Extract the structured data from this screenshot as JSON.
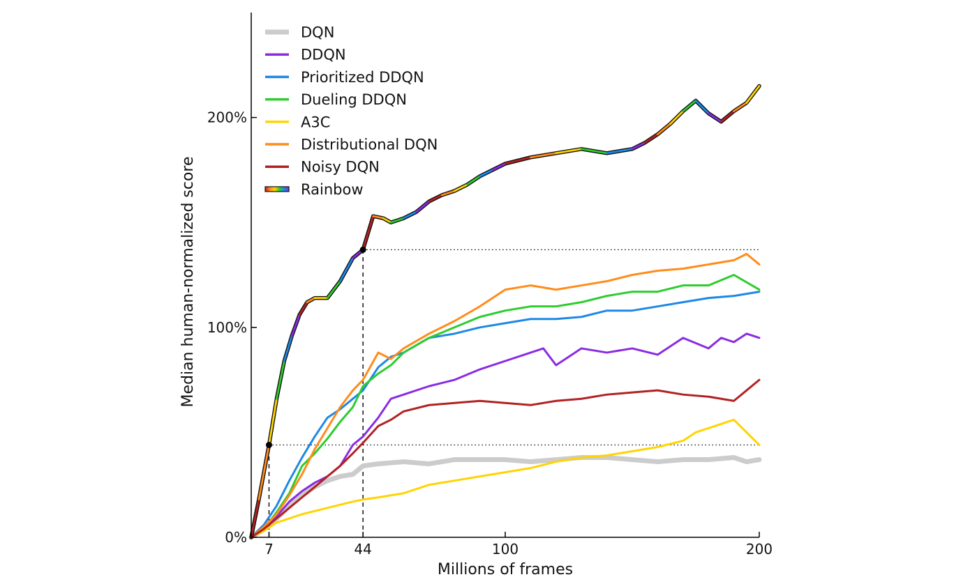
{
  "chart_data": {
    "type": "line",
    "title": "",
    "xlabel": "Millions of frames",
    "ylabel": "Median human-normalized score",
    "xlim": [
      0,
      200
    ],
    "ylim": [
      0,
      250
    ],
    "x_ticks": [
      7,
      44,
      100,
      200
    ],
    "x_tick_labels": [
      "7",
      "44",
      "100",
      "200"
    ],
    "y_ticks": [
      0,
      100,
      200
    ],
    "y_tick_labels": [
      "0%",
      "100%",
      "200%"
    ],
    "grid": false,
    "legend_position": "top-left",
    "reference_lines": [
      {
        "x": 7,
        "y": 44,
        "color": "#000000"
      },
      {
        "x": 44,
        "y": 137,
        "color": "#000000"
      }
    ],
    "series": [
      {
        "name": "DQN",
        "color": "#cccccc",
        "width": 7,
        "x": [
          0,
          5,
          10,
          15,
          20,
          25,
          30,
          35,
          40,
          44,
          50,
          60,
          70,
          80,
          90,
          100,
          110,
          120,
          130,
          140,
          150,
          160,
          170,
          180,
          190,
          195,
          200
        ],
        "y": [
          0,
          4,
          9,
          15,
          20,
          24,
          27,
          29,
          30,
          34,
          35,
          36,
          35,
          37,
          37,
          37,
          36,
          37,
          38,
          38,
          37,
          36,
          37,
          37,
          38,
          36,
          37
        ]
      },
      {
        "name": "DDQN",
        "color": "#8a2be2",
        "width": 3,
        "x": [
          0,
          5,
          10,
          15,
          20,
          25,
          30,
          35,
          40,
          44,
          50,
          55,
          60,
          70,
          80,
          90,
          100,
          110,
          115,
          120,
          130,
          140,
          150,
          160,
          170,
          180,
          185,
          190,
          195,
          200
        ],
        "y": [
          0,
          3,
          10,
          17,
          22,
          26,
          29,
          34,
          44,
          48,
          57,
          66,
          68,
          72,
          75,
          80,
          84,
          88,
          90,
          82,
          90,
          88,
          90,
          87,
          95,
          90,
          95,
          93,
          97,
          95
        ]
      },
      {
        "name": "Prioritized DDQN",
        "color": "#1e88e5",
        "width": 3,
        "x": [
          0,
          5,
          10,
          15,
          20,
          25,
          30,
          35,
          40,
          44,
          50,
          55,
          60,
          70,
          80,
          90,
          100,
          110,
          120,
          130,
          140,
          150,
          160,
          170,
          180,
          190,
          200
        ],
        "y": [
          0,
          6,
          15,
          27,
          38,
          48,
          57,
          61,
          66,
          70,
          81,
          86,
          88,
          95,
          97,
          100,
          102,
          104,
          104,
          105,
          108,
          108,
          110,
          112,
          114,
          115,
          117
        ]
      },
      {
        "name": "Dueling DDQN",
        "color": "#2ecc2e",
        "width": 3,
        "x": [
          0,
          5,
          10,
          15,
          20,
          25,
          30,
          35,
          40,
          44,
          50,
          55,
          60,
          70,
          80,
          90,
          100,
          110,
          120,
          130,
          140,
          150,
          160,
          170,
          180,
          190,
          200
        ],
        "y": [
          0,
          4,
          12,
          21,
          34,
          40,
          47,
          55,
          62,
          72,
          78,
          82,
          88,
          95,
          100,
          105,
          108,
          110,
          110,
          112,
          115,
          117,
          117,
          120,
          120,
          125,
          118
        ]
      },
      {
        "name": "A3C",
        "color": "#ffd400",
        "width": 3,
        "x": [
          0,
          5,
          10,
          20,
          30,
          40,
          44,
          50,
          60,
          70,
          80,
          90,
          100,
          110,
          120,
          130,
          140,
          150,
          160,
          170,
          175,
          180,
          185,
          190,
          195,
          200
        ],
        "y": [
          0,
          3,
          7,
          11,
          14,
          17,
          18,
          19,
          21,
          25,
          27,
          29,
          31,
          33,
          36,
          38,
          39,
          41,
          43,
          46,
          50,
          52,
          54,
          56,
          50,
          44
        ]
      },
      {
        "name": "Distributional DQN",
        "color": "#ff8c1a",
        "width": 3,
        "x": [
          0,
          5,
          10,
          15,
          20,
          25,
          30,
          35,
          40,
          44,
          50,
          55,
          60,
          70,
          80,
          90,
          100,
          110,
          120,
          130,
          140,
          150,
          160,
          170,
          180,
          190,
          195,
          200
        ],
        "y": [
          0,
          5,
          11,
          20,
          30,
          42,
          52,
          62,
          70,
          75,
          88,
          85,
          90,
          97,
          103,
          110,
          118,
          120,
          118,
          120,
          122,
          125,
          127,
          128,
          130,
          132,
          135,
          130
        ]
      },
      {
        "name": "Noisy DQN",
        "color": "#b22222",
        "width": 3,
        "x": [
          0,
          5,
          10,
          15,
          20,
          25,
          30,
          35,
          40,
          44,
          50,
          55,
          60,
          70,
          80,
          90,
          100,
          110,
          120,
          130,
          140,
          150,
          160,
          170,
          180,
          190,
          195,
          200
        ],
        "y": [
          0,
          4,
          9,
          14,
          19,
          24,
          29,
          34,
          40,
          45,
          53,
          56,
          60,
          63,
          64,
          65,
          64,
          63,
          65,
          66,
          68,
          69,
          70,
          68,
          67,
          65,
          70,
          75
        ]
      },
      {
        "name": "Rainbow",
        "color": "#000000",
        "width": 3,
        "rainbow": true,
        "x": [
          0,
          3,
          7,
          10,
          13,
          16,
          19,
          22,
          25,
          30,
          35,
          40,
          44,
          48,
          52,
          55,
          60,
          65,
          70,
          75,
          80,
          85,
          90,
          95,
          100,
          110,
          120,
          130,
          140,
          150,
          155,
          160,
          165,
          170,
          175,
          180,
          185,
          190,
          195,
          200
        ],
        "y": [
          0,
          18,
          44,
          66,
          84,
          96,
          106,
          112,
          114,
          114,
          122,
          133,
          137,
          153,
          152,
          150,
          152,
          155,
          160,
          163,
          165,
          168,
          172,
          175,
          178,
          181,
          183,
          185,
          183,
          185,
          188,
          192,
          197,
          203,
          208,
          202,
          198,
          203,
          207,
          215
        ]
      }
    ]
  }
}
